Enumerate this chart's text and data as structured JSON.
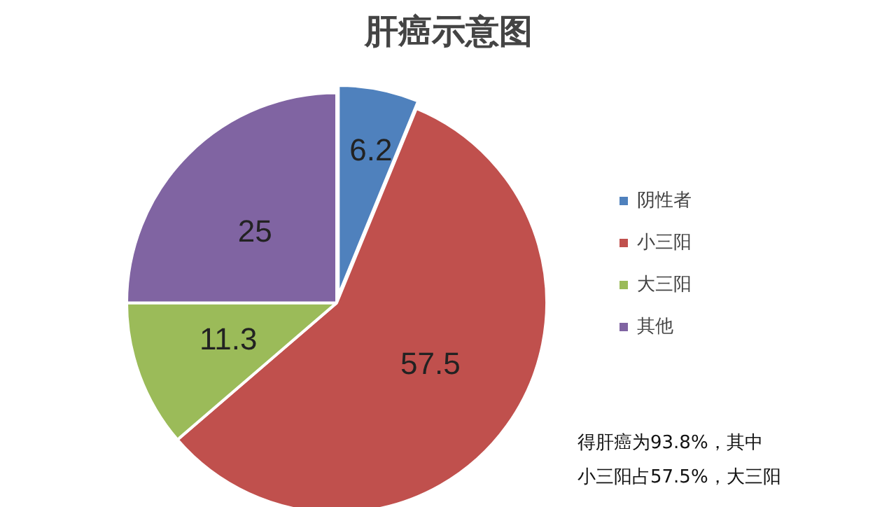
{
  "chart_data": {
    "type": "pie",
    "title": "肝癌示意图",
    "categories": [
      "阴性者",
      "小三阳",
      "大三阳",
      "其他"
    ],
    "values": [
      6.2,
      57.5,
      11.3,
      25
    ],
    "colors": [
      "#4f81bd",
      "#c0504d",
      "#9bbb59",
      "#8064a2"
    ],
    "data_labels": true,
    "legend": "right",
    "annotations": [
      "得肝癌为93.8%，其中",
      "小三阳占57.5%，大三阳"
    ]
  }
}
